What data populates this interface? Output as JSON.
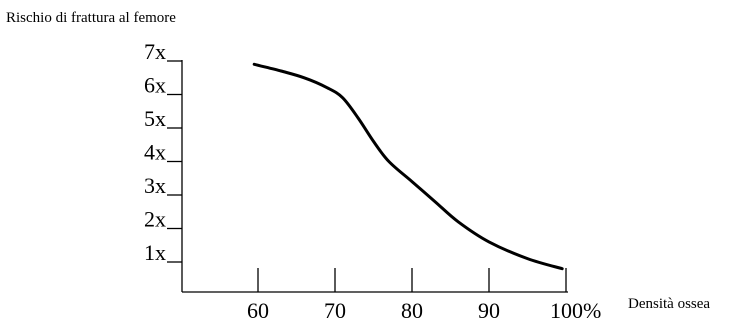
{
  "chart_data": {
    "type": "line",
    "title": "Rischio di frattura al femore",
    "xlabel": "Densità ossea",
    "ylabel": "",
    "x_ticks": [
      "60",
      "70",
      "80",
      "90",
      "100%"
    ],
    "x_tick_values": [
      60,
      70,
      80,
      90,
      100
    ],
    "y_ticks": [
      "1x",
      "2x",
      "3x",
      "4x",
      "5x",
      "6x",
      "7x"
    ],
    "y_tick_values": [
      1,
      2,
      3,
      4,
      5,
      6,
      7
    ],
    "xlim": [
      45,
      100
    ],
    "ylim": [
      0,
      7
    ],
    "grid": false,
    "series": [
      {
        "x": [
          59.5,
          63,
          66,
          69,
          71,
          73,
          75,
          77,
          80,
          83,
          86,
          90,
          95,
          99.5
        ],
        "y": [
          6.9,
          6.7,
          6.5,
          6.2,
          5.9,
          5.3,
          4.6,
          4.0,
          3.4,
          2.8,
          2.2,
          1.6,
          1.1,
          0.8
        ]
      }
    ]
  }
}
